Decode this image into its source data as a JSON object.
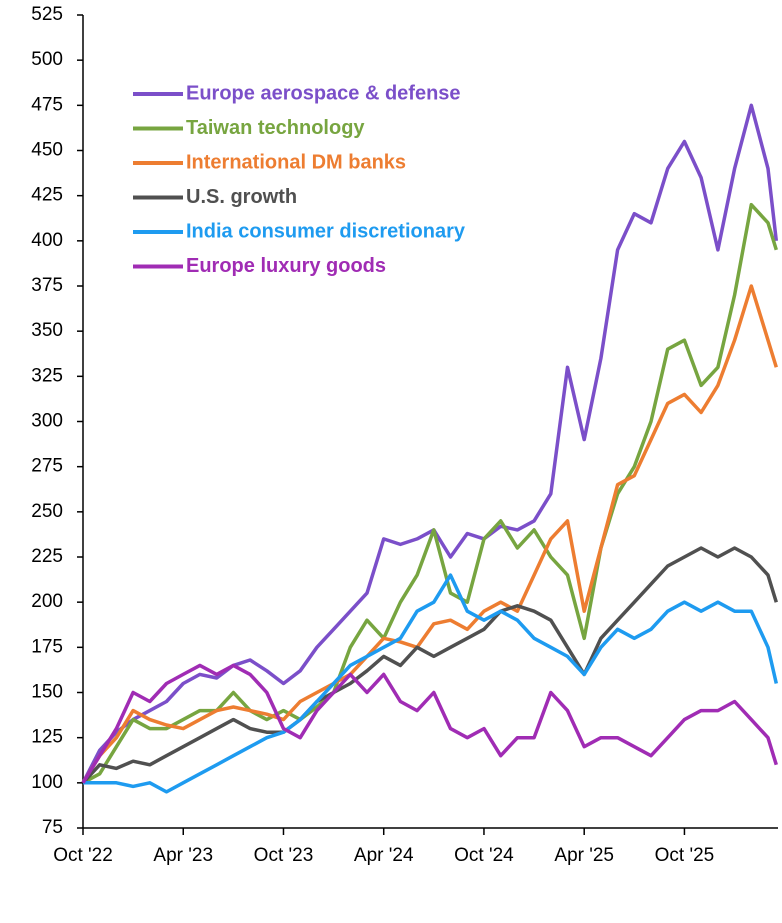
{
  "chart_data": {
    "type": "line",
    "x": [
      0,
      1,
      2,
      3,
      4,
      5,
      6,
      7,
      8,
      9,
      10,
      11,
      12,
      13,
      14,
      15,
      16,
      17,
      18,
      19,
      20,
      21,
      22,
      23,
      24,
      25,
      26,
      27,
      28,
      29,
      30,
      31,
      32,
      33,
      34,
      35,
      36,
      37,
      38,
      39,
      40,
      41,
      41.5
    ],
    "xlim": [
      0,
      41.6
    ],
    "xticks": [
      {
        "value": 0,
        "label": "Oct '22"
      },
      {
        "value": 6,
        "label": "Apr '23"
      },
      {
        "value": 12,
        "label": "Oct '23"
      },
      {
        "value": 18,
        "label": "Apr '24"
      },
      {
        "value": 24,
        "label": "Oct '24"
      },
      {
        "value": 30,
        "label": "Apr '25"
      },
      {
        "value": 36,
        "label": "Oct '25"
      }
    ],
    "ylim": [
      75,
      525
    ],
    "yticks": [
      75,
      100,
      125,
      150,
      175,
      200,
      225,
      250,
      275,
      300,
      325,
      350,
      375,
      400,
      425,
      450,
      475,
      500,
      525
    ],
    "grid": false,
    "legend": "top-left",
    "series": [
      {
        "name": "Europe aerospace & defense",
        "color": "#7b4fc9",
        "values": [
          100,
          118,
          128,
          135,
          140,
          145,
          155,
          160,
          158,
          165,
          168,
          162,
          155,
          162,
          175,
          185,
          195,
          205,
          235,
          232,
          235,
          240,
          225,
          238,
          235,
          242,
          240,
          245,
          260,
          330,
          290,
          335,
          395,
          415,
          410,
          440,
          455,
          435,
          395,
          440,
          475,
          440,
          400
        ]
      },
      {
        "name": "Taiwan technology",
        "color": "#77a540",
        "values": [
          100,
          105,
          120,
          135,
          130,
          130,
          135,
          140,
          140,
          150,
          140,
          135,
          140,
          135,
          142,
          150,
          175,
          190,
          180,
          200,
          215,
          240,
          205,
          200,
          235,
          245,
          230,
          240,
          225,
          215,
          180,
          230,
          260,
          275,
          300,
          340,
          345,
          320,
          330,
          370,
          420,
          410,
          395
        ]
      },
      {
        "name": "International DM banks",
        "color": "#ed7d31",
        "values": [
          100,
          115,
          125,
          140,
          135,
          132,
          130,
          135,
          140,
          142,
          140,
          138,
          135,
          145,
          150,
          155,
          160,
          170,
          180,
          178,
          175,
          188,
          190,
          185,
          195,
          200,
          195,
          215,
          235,
          245,
          195,
          230,
          265,
          270,
          290,
          310,
          315,
          305,
          320,
          345,
          375,
          345,
          330
        ]
      },
      {
        "name": "U.S. growth",
        "color": "#505050",
        "values": [
          100,
          110,
          108,
          112,
          110,
          115,
          120,
          125,
          130,
          135,
          130,
          128,
          128,
          135,
          145,
          150,
          155,
          162,
          170,
          165,
          175,
          170,
          175,
          180,
          185,
          195,
          198,
          195,
          190,
          175,
          160,
          180,
          190,
          200,
          210,
          220,
          225,
          230,
          225,
          230,
          225,
          215,
          200
        ]
      },
      {
        "name": "India consumer discretionary",
        "color": "#1e9bf0",
        "values": [
          100,
          100,
          100,
          98,
          100,
          95,
          100,
          105,
          110,
          115,
          120,
          125,
          128,
          135,
          145,
          155,
          165,
          170,
          175,
          180,
          195,
          200,
          215,
          195,
          190,
          195,
          190,
          180,
          175,
          170,
          160,
          175,
          185,
          180,
          185,
          195,
          200,
          195,
          200,
          195,
          195,
          175,
          155
        ]
      },
      {
        "name": "Europe luxury goods",
        "color": "#a02cb4",
        "values": [
          100,
          115,
          130,
          150,
          145,
          155,
          160,
          165,
          160,
          165,
          160,
          150,
          130,
          125,
          140,
          150,
          160,
          150,
          160,
          145,
          140,
          150,
          130,
          125,
          130,
          115,
          125,
          125,
          150,
          140,
          120,
          125,
          125,
          120,
          115,
          125,
          135,
          140,
          140,
          145,
          135,
          125,
          110
        ]
      }
    ]
  }
}
